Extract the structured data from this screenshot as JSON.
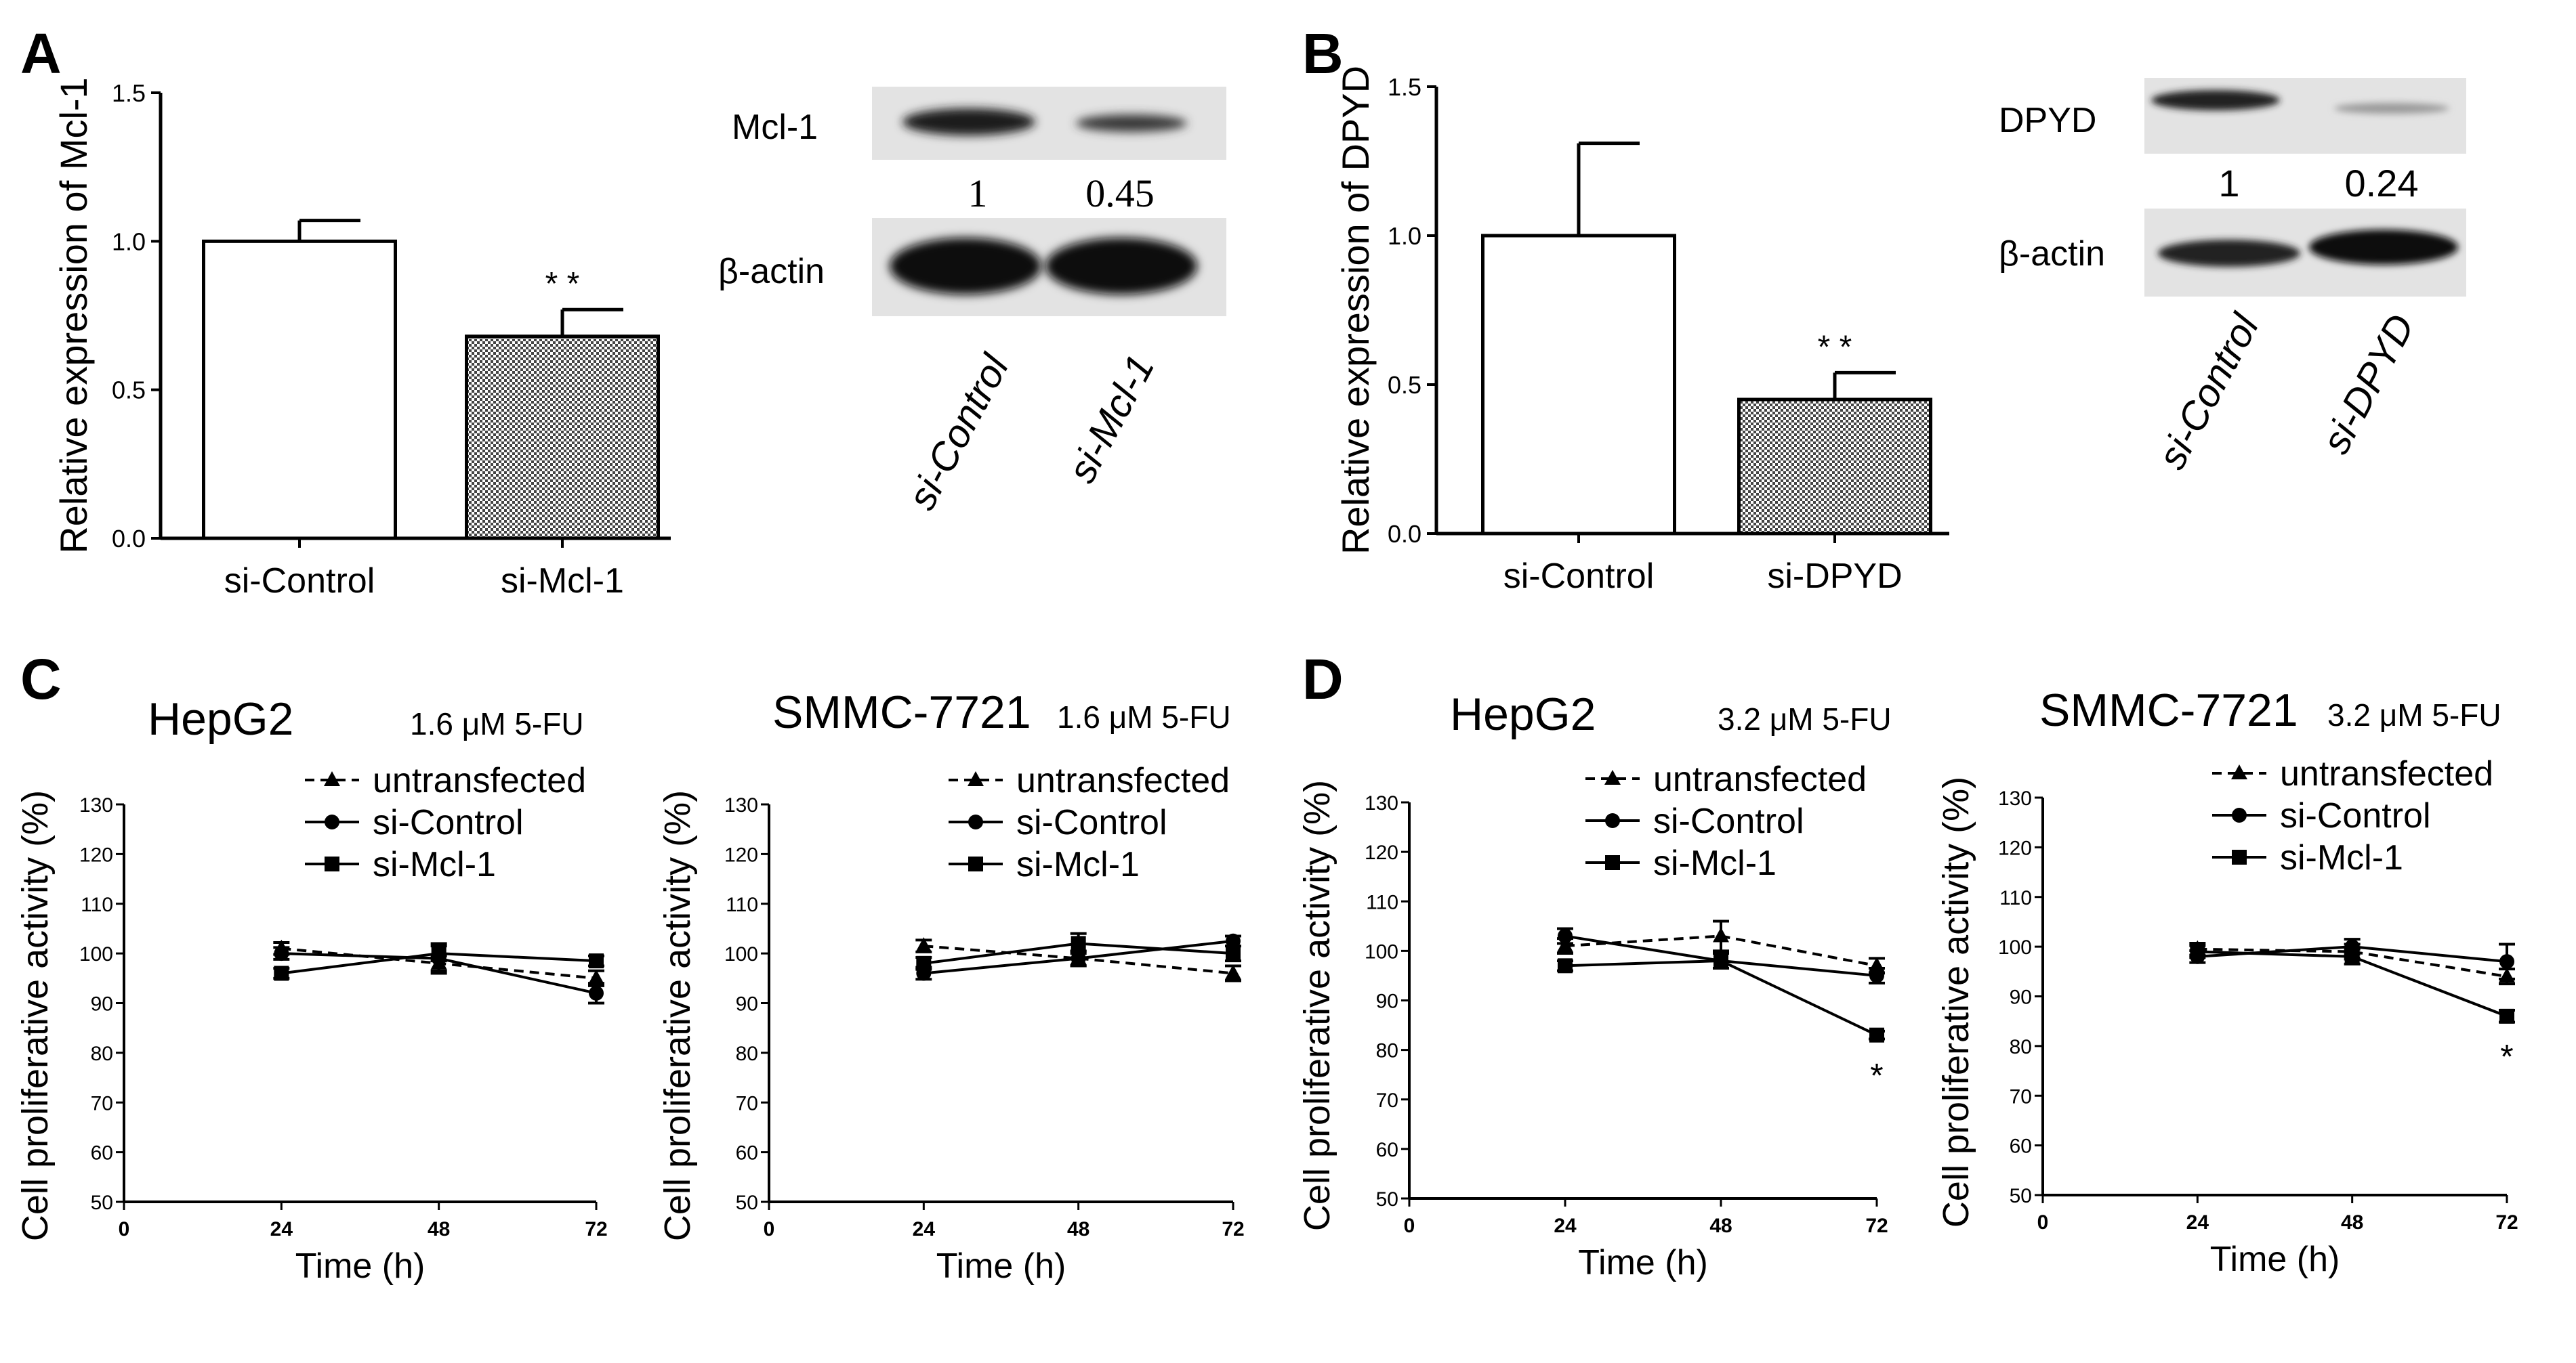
{
  "panels": [
    {
      "letter": "A"
    },
    {
      "letter": "B"
    },
    {
      "letter": "C"
    },
    {
      "letter": "D"
    }
  ],
  "blots": [
    {
      "target_label": "Mcl-1",
      "actin_label": "β-actin",
      "quant": [
        "1",
        "0.45"
      ],
      "lanes": [
        "si-Control",
        "si-Mcl-1"
      ]
    },
    {
      "target_label": "DPYD",
      "actin_label": "β-actin",
      "quant": [
        "1",
        "0.24"
      ],
      "lanes": [
        "si-Control",
        "si-DPYD"
      ]
    }
  ],
  "chart_data": [
    {
      "id": "A",
      "type": "bar",
      "categories": [
        "si-Control",
        "si-Mcl-1"
      ],
      "values": [
        1.0,
        0.68
      ],
      "errors": [
        0.07,
        0.09
      ],
      "significance": [
        "",
        "* *"
      ],
      "ylabel": "Relative expression of Mcl-1",
      "ylim": [
        0,
        1.5
      ],
      "yticks": [
        "0.0",
        "0.5",
        "1.0",
        "1.5"
      ]
    },
    {
      "id": "B",
      "type": "bar",
      "categories": [
        "si-Control",
        "si-DPYD"
      ],
      "values": [
        1.0,
        0.45
      ],
      "errors": [
        0.31,
        0.09
      ],
      "significance": [
        "",
        "* *"
      ],
      "ylabel": "Relative expression of DPYD",
      "ylim": [
        0,
        1.5
      ],
      "yticks": [
        "0.0",
        "0.5",
        "1.0",
        "1.5"
      ]
    },
    {
      "id": "C1",
      "type": "line",
      "title": "HepG2",
      "treatment": "1.6 μM 5-FU",
      "xlabel": "Time (h)",
      "ylabel": "Cell proliferative activity (%)",
      "xlim": [
        0,
        72
      ],
      "ylim": [
        50,
        130
      ],
      "xticks": [
        "0",
        "24",
        "48",
        "72"
      ],
      "yticks": [
        "50",
        "60",
        "70",
        "80",
        "90",
        "100",
        "110",
        "120",
        "130"
      ],
      "x": [
        24,
        48,
        72
      ],
      "series": [
        {
          "name": "untransfected",
          "marker": "triangle",
          "dash": true,
          "values": [
            101,
            98,
            95
          ],
          "errors": [
            1.2,
            1.5,
            1.5
          ]
        },
        {
          "name": "si-Control",
          "marker": "circle",
          "dash": false,
          "values": [
            100,
            99,
            92
          ],
          "errors": [
            1.2,
            3,
            2
          ]
        },
        {
          "name": "si-Mcl-1",
          "marker": "square",
          "dash": false,
          "values": [
            96,
            100,
            98.5
          ],
          "errors": [
            1,
            1.5,
            1
          ]
        }
      ],
      "annotations": []
    },
    {
      "id": "C2",
      "type": "line",
      "title": "SMMC-7721",
      "treatment": "1.6 μM 5-FU",
      "xlabel": "Time (h)",
      "ylabel": "Cell proliferative activity (%)",
      "xlim": [
        0,
        72
      ],
      "ylim": [
        50,
        130
      ],
      "xticks": [
        "0",
        "24",
        "48",
        "72"
      ],
      "yticks": [
        "50",
        "60",
        "70",
        "80",
        "90",
        "100",
        "110",
        "120",
        "130"
      ],
      "x": [
        24,
        48,
        72
      ],
      "series": [
        {
          "name": "untransfected",
          "marker": "triangle",
          "dash": true,
          "values": [
            101.5,
            99,
            96
          ],
          "errors": [
            1.2,
            1.5,
            1.5
          ]
        },
        {
          "name": "si-Control",
          "marker": "circle",
          "dash": false,
          "values": [
            96,
            99,
            102.5
          ],
          "errors": [
            1.2,
            1.5,
            1
          ]
        },
        {
          "name": "si-Mcl-1",
          "marker": "square",
          "dash": false,
          "values": [
            98,
            102,
            100
          ],
          "errors": [
            1.2,
            2,
            1.5
          ]
        }
      ],
      "annotations": []
    },
    {
      "id": "D1",
      "type": "line",
      "title": "HepG2",
      "treatment": "3.2 μM 5-FU",
      "xlabel": "Time (h)",
      "ylabel": "Cell proliferative activity (%)",
      "xlim": [
        0,
        72
      ],
      "ylim": [
        50,
        130
      ],
      "xticks": [
        "0",
        "24",
        "48",
        "72"
      ],
      "yticks": [
        "50",
        "60",
        "70",
        "80",
        "90",
        "100",
        "110",
        "120",
        "130"
      ],
      "x": [
        24,
        48,
        72
      ],
      "series": [
        {
          "name": "untransfected",
          "marker": "triangle",
          "dash": true,
          "values": [
            101,
            103,
            97
          ],
          "errors": [
            1.5,
            3,
            1.5
          ]
        },
        {
          "name": "si-Control",
          "marker": "circle",
          "dash": false,
          "values": [
            103,
            98,
            95
          ],
          "errors": [
            1.5,
            1.5,
            1.5
          ]
        },
        {
          "name": "si-Mcl-1",
          "marker": "square",
          "dash": false,
          "values": [
            97,
            98,
            83
          ],
          "errors": [
            1,
            1.5,
            0.8
          ]
        }
      ],
      "annotations": [
        {
          "x": 72,
          "y": 78,
          "text": "*"
        }
      ]
    },
    {
      "id": "D2",
      "type": "line",
      "title": "SMMC-7721",
      "treatment": "3.2 μM 5-FU",
      "xlabel": "Time (h)",
      "ylabel": "Cell proliferative activity (%)",
      "xlim": [
        0,
        72
      ],
      "ylim": [
        50,
        130
      ],
      "xticks": [
        "0",
        "24",
        "48",
        "72"
      ],
      "yticks": [
        "50",
        "60",
        "70",
        "80",
        "90",
        "100",
        "110",
        "120",
        "130"
      ],
      "x": [
        24,
        48,
        72
      ],
      "series": [
        {
          "name": "untransfected",
          "marker": "triangle",
          "dash": true,
          "values": [
            99.5,
            99,
            94
          ],
          "errors": [
            1.2,
            1.5,
            1.5
          ]
        },
        {
          "name": "si-Control",
          "marker": "circle",
          "dash": false,
          "values": [
            98,
            100,
            97
          ],
          "errors": [
            1.2,
            1.5,
            3.5
          ]
        },
        {
          "name": "si-Mcl-1",
          "marker": "square",
          "dash": false,
          "values": [
            99,
            98,
            86
          ],
          "errors": [
            1.2,
            1.5,
            1.2
          ]
        }
      ],
      "annotations": [
        {
          "x": 72,
          "y": 81,
          "text": "*"
        }
      ]
    }
  ]
}
